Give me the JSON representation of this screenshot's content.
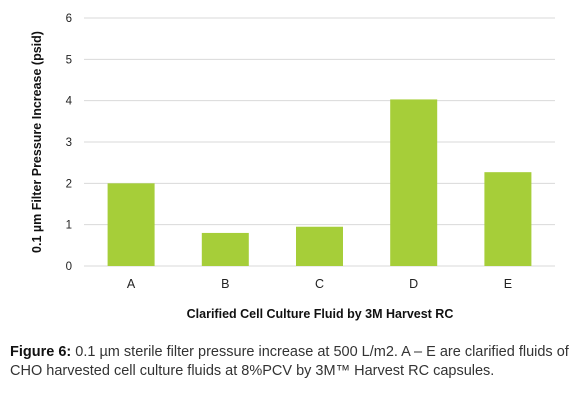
{
  "chart_data": {
    "type": "bar",
    "categories": [
      "A",
      "B",
      "C",
      "D",
      "E"
    ],
    "values": [
      2.0,
      0.8,
      0.95,
      4.03,
      2.27
    ],
    "title": "",
    "xlabel": "Clarified Cell Culture Fluid by 3M Harvest RC",
    "ylabel": "0.1 µm Filter Pressure Increase (psid)",
    "ylim": [
      0,
      6
    ],
    "yticks": [
      "0",
      "1",
      "2",
      "3",
      "4",
      "5",
      "6"
    ],
    "grid": true,
    "bar_color": "#a6ce39",
    "grid_color": "#d9d9d9"
  },
  "caption": {
    "label": "Figure 6:",
    "text": "0.1 µm sterile filter pressure increase at 500 L/m2. A – E are clarified fluids of CHO harvested cell culture fluids at 8%PCV by 3M™ Harvest RC capsules."
  }
}
